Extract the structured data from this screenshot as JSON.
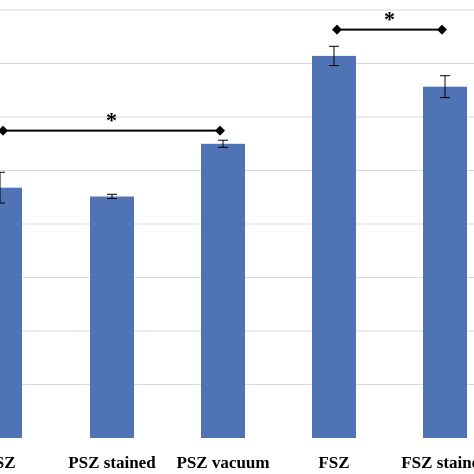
{
  "chart_data": {
    "type": "bar",
    "categories": [
      "PSZ",
      "PSZ stained",
      "PSZ vacuum",
      "FSZ",
      "FSZ stained"
    ],
    "values": [
      5.7,
      5.5,
      6.7,
      8.7,
      8.0
    ],
    "errors": [
      0.35,
      0.05,
      0.08,
      0.22,
      0.25
    ],
    "ylim": [
      0,
      9.7
    ],
    "grid": true,
    "bar_color": "#4F73B4",
    "gridline_color": "#D9D9D9",
    "significance": [
      {
        "from": 0,
        "to": 2,
        "label": "*",
        "level": 7.0
      },
      {
        "from": 3,
        "to": 4,
        "label": "*",
        "level": 9.3
      }
    ]
  }
}
